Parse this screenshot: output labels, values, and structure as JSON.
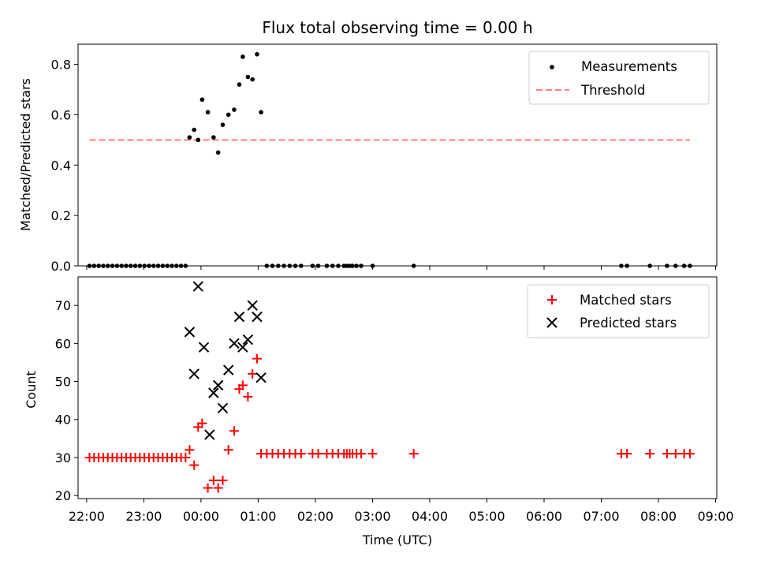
{
  "chart_data": {
    "type": "scatter",
    "title": "Flux total observing time = 0.00 h",
    "x_ticks": [
      "22:00",
      "23:00",
      "00:00",
      "01:00",
      "02:00",
      "03:00",
      "04:00",
      "05:00",
      "06:00",
      "07:00",
      "08:00",
      "09:00"
    ],
    "xlabel": "Time (UTC)",
    "xlim_hours": [
      -2.15,
      9.02
    ],
    "panels": [
      {
        "name": "ratio",
        "ylabel": "Matched/Predicted stars",
        "ylim": [
          0,
          0.88
        ],
        "y_ticks": [
          "0.0",
          "0.2",
          "0.4",
          "0.6",
          "0.8"
        ],
        "y_tick_values": [
          0,
          0.2,
          0.4,
          0.6,
          0.8
        ],
        "legend": [
          "Measurements",
          "Threshold"
        ],
        "threshold": {
          "name": "Threshold",
          "value": 0.5,
          "x_range": [
            -1.95,
            8.55
          ],
          "color": "#ff7f7f"
        },
        "series": [
          {
            "name": "Measurements",
            "color": "#000000",
            "x": [
              -1.95,
              -1.87,
              -1.79,
              -1.71,
              -1.63,
              -1.55,
              -1.47,
              -1.39,
              -1.31,
              -1.23,
              -1.15,
              -1.07,
              -0.99,
              -0.91,
              -0.83,
              -0.75,
              -0.67,
              -0.59,
              -0.51,
              -0.43,
              -0.35,
              -0.27,
              -0.2,
              -0.12,
              -0.05,
              0.02,
              0.12,
              0.22,
              0.3,
              0.38,
              0.48,
              0.58,
              0.67,
              0.73,
              0.82,
              0.9,
              0.98,
              1.05,
              1.15,
              1.25,
              1.35,
              1.45,
              1.55,
              1.65,
              1.75,
              1.95,
              2.05,
              2.2,
              2.3,
              2.4,
              2.5,
              2.55,
              2.6,
              2.65,
              2.72,
              2.8,
              3.0,
              3.72,
              7.35,
              7.45,
              7.85,
              8.15,
              8.3,
              8.45,
              8.55
            ],
            "y": [
              0,
              0,
              0,
              0,
              0,
              0,
              0,
              0,
              0,
              0,
              0,
              0,
              0,
              0,
              0,
              0,
              0,
              0,
              0,
              0,
              0,
              0,
              0.51,
              0.54,
              0.5,
              0.66,
              0.61,
              0.51,
              0.45,
              0.56,
              0.6,
              0.62,
              0.72,
              0.83,
              0.75,
              0.74,
              0.84,
              0.61,
              0,
              0,
              0,
              0,
              0,
              0,
              0,
              0,
              0,
              0,
              0,
              0,
              0,
              0,
              0,
              0,
              0,
              0,
              0,
              0,
              0,
              0,
              0,
              0,
              0,
              0,
              0
            ]
          }
        ]
      },
      {
        "name": "counts",
        "ylabel": "Count",
        "ylim": [
          19.2,
          77.5
        ],
        "y_ticks": [
          "20",
          "30",
          "40",
          "50",
          "60",
          "70"
        ],
        "y_tick_values": [
          20,
          30,
          40,
          50,
          60,
          70
        ],
        "legend": [
          "Matched stars",
          "Predicted stars"
        ],
        "series": [
          {
            "name": "Matched stars",
            "marker": "plus",
            "color": "#ff0000",
            "x": [
              -1.95,
              -1.87,
              -1.79,
              -1.71,
              -1.63,
              -1.55,
              -1.47,
              -1.39,
              -1.31,
              -1.23,
              -1.15,
              -1.07,
              -0.99,
              -0.91,
              -0.83,
              -0.75,
              -0.67,
              -0.59,
              -0.51,
              -0.43,
              -0.35,
              -0.27,
              -0.2,
              -0.12,
              -0.05,
              0.02,
              0.12,
              0.22,
              0.3,
              0.38,
              0.48,
              0.58,
              0.67,
              0.73,
              0.82,
              0.9,
              0.98,
              1.05,
              1.15,
              1.25,
              1.35,
              1.45,
              1.55,
              1.65,
              1.75,
              1.95,
              2.05,
              2.2,
              2.3,
              2.4,
              2.5,
              2.55,
              2.6,
              2.65,
              2.72,
              2.8,
              3.0,
              3.72,
              7.35,
              7.45,
              7.85,
              8.15,
              8.3,
              8.45,
              8.55
            ],
            "y": [
              30,
              30,
              30,
              30,
              30,
              30,
              30,
              30,
              30,
              30,
              30,
              30,
              30,
              30,
              30,
              30,
              30,
              30,
              30,
              30,
              30,
              30,
              32,
              28,
              38,
              39,
              22,
              24,
              22,
              24,
              32,
              37,
              48,
              49,
              46,
              52,
              56,
              31,
              31,
              31,
              31,
              31,
              31,
              31,
              31,
              31,
              31,
              31,
              31,
              31,
              31,
              31,
              31,
              31,
              31,
              31,
              31,
              31,
              31,
              31,
              31,
              31,
              31,
              31,
              31
            ]
          },
          {
            "name": "Predicted stars",
            "marker": "x",
            "color": "#000000",
            "x": [
              -0.2,
              -0.12,
              -0.05,
              0.05,
              0.15,
              0.22,
              0.3,
              0.38,
              0.48,
              0.58,
              0.67,
              0.73,
              0.82,
              0.9,
              0.98,
              1.05
            ],
            "y": [
              63,
              52,
              75,
              59,
              36,
              47,
              49,
              43,
              53,
              60,
              67,
              59,
              61,
              70,
              67,
              51
            ]
          }
        ]
      }
    ]
  }
}
